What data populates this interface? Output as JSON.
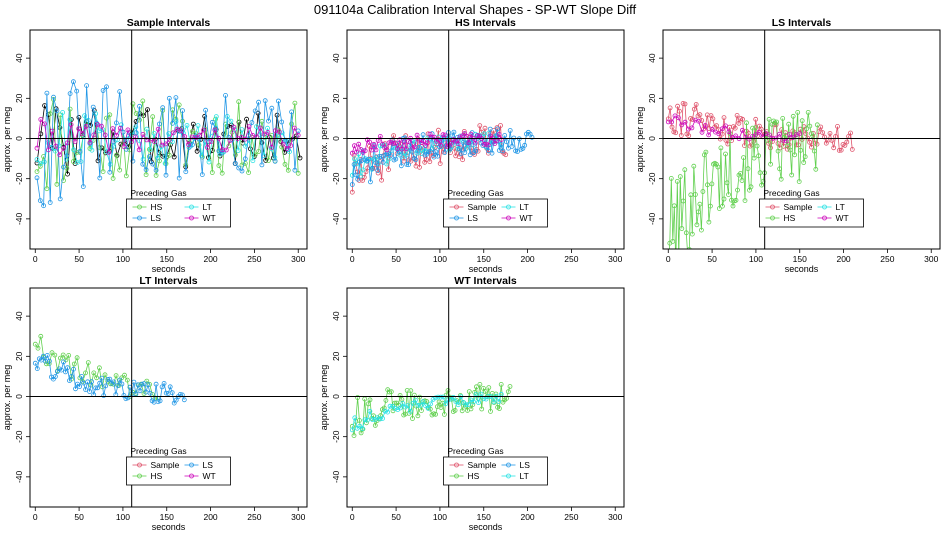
{
  "figure_title": "091104a   Calibration Interval Shapes - SP-WT Slope Diff",
  "colors": {
    "Sample": "#df536b",
    "HS": "#61d04f",
    "LS": "#2297e6",
    "LT": "#28e2e5",
    "WT": "#cd0bbc",
    "black": "#000000"
  },
  "chart_data": [
    {
      "type": "line",
      "title": "Sample Intervals",
      "xlabel": "seconds",
      "ylabel": "approx. per meg",
      "xlim": [
        -6,
        310
      ],
      "ylim": [
        -55,
        54
      ],
      "xticks": [
        0,
        50,
        100,
        150,
        200,
        250,
        300
      ],
      "yticks": [
        -40,
        -20,
        0,
        20,
        40
      ],
      "vline": 110,
      "hline": 0,
      "legend": {
        "title": "Preceding Gas",
        "entries": [
          "HS",
          "LT",
          "LS",
          "WT"
        ],
        "position": "bottom-center"
      },
      "series": [
        {
          "name": "black",
          "x_start": 2,
          "x_end": 302,
          "n": 70,
          "amp": 22,
          "noise": 0.45,
          "lead": 0,
          "seed": 3
        },
        {
          "name": "HS",
          "x_start": 2,
          "x_end": 300,
          "n": 80,
          "amp": 28,
          "noise": 0.5,
          "lead": 0,
          "seed": 11
        },
        {
          "name": "LT",
          "x_start": 2,
          "x_end": 290,
          "n": 70,
          "amp": 18,
          "noise": 0.5,
          "lead": 0,
          "seed": 21
        },
        {
          "name": "LS",
          "x_start": 2,
          "x_end": 300,
          "n": 80,
          "amp": 32,
          "noise": 0.55,
          "lead": 0,
          "seed": 31
        },
        {
          "name": "WT",
          "x_start": 2,
          "x_end": 300,
          "n": 70,
          "amp": 10,
          "noise": 0.4,
          "lead": 0,
          "seed": 41
        }
      ]
    },
    {
      "type": "line",
      "title": "HS Intervals",
      "xlabel": "seconds",
      "ylabel": "approx. per meg",
      "xlim": [
        -6,
        310
      ],
      "ylim": [
        -55,
        54
      ],
      "xticks": [
        0,
        50,
        100,
        150,
        200,
        250,
        300
      ],
      "yticks": [
        -40,
        -20,
        0,
        20,
        40
      ],
      "vline": 110,
      "hline": 0,
      "legend": {
        "title": "Preceding Gas",
        "entries": [
          "Sample",
          "LT",
          "LS",
          "WT"
        ],
        "position": "bottom-center"
      },
      "series": [
        {
          "name": "Sample",
          "x_start": 0,
          "x_end": 175,
          "n": 90,
          "amp": 12,
          "noise": 0.5,
          "lead": -20,
          "seed": 51
        },
        {
          "name": "LT",
          "x_start": 0,
          "x_end": 170,
          "n": 70,
          "amp": 6,
          "noise": 0.5,
          "lead": -15,
          "seed": 61
        },
        {
          "name": "LS",
          "x_start": 0,
          "x_end": 205,
          "n": 100,
          "amp": 9,
          "noise": 0.5,
          "lead": -18,
          "seed": 71
        },
        {
          "name": "WT",
          "x_start": 0,
          "x_end": 170,
          "n": 70,
          "amp": 5,
          "noise": 0.4,
          "lead": -5,
          "seed": 81
        }
      ]
    },
    {
      "type": "line",
      "title": "LS Intervals",
      "xlabel": "seconds",
      "ylabel": "approx. per meg",
      "xlim": [
        -6,
        310
      ],
      "ylim": [
        -55,
        54
      ],
      "xticks": [
        0,
        50,
        100,
        150,
        200,
        250,
        300
      ],
      "yticks": [
        -40,
        -20,
        0,
        20,
        40
      ],
      "vline": 110,
      "hline": 0,
      "legend": {
        "title": "Preceding Gas",
        "entries": [
          "Sample",
          "LT",
          "HS",
          "WT"
        ],
        "position": "bottom-center"
      },
      "series": [
        {
          "name": "Sample",
          "x_start": 0,
          "x_end": 210,
          "n": 100,
          "amp": 10,
          "noise": 0.5,
          "lead": 15,
          "seed": 91
        },
        {
          "name": "HS",
          "x_start": 0,
          "x_end": 170,
          "n": 100,
          "amp": 24,
          "noise": 0.55,
          "lead": -50,
          "seed": 101
        },
        {
          "name": "WT",
          "x_start": 0,
          "x_end": 150,
          "n": 40,
          "amp": 4,
          "noise": 0.4,
          "lead": 10,
          "seed": 111
        }
      ]
    },
    {
      "type": "line",
      "title": "LT Intervals",
      "xlabel": "seconds",
      "ylabel": "approx. per meg",
      "xlim": [
        -6,
        310
      ],
      "ylim": [
        -55,
        54
      ],
      "xticks": [
        0,
        50,
        100,
        150,
        200,
        250,
        300
      ],
      "yticks": [
        -40,
        -20,
        0,
        20,
        40
      ],
      "vline": 110,
      "hline": 0,
      "legend": {
        "title": "Preceding Gas",
        "entries": [
          "Sample",
          "LS",
          "HS",
          "WT"
        ],
        "position": "bottom-center"
      },
      "series": [
        {
          "name": "HS",
          "x_start": 0,
          "x_end": 140,
          "n": 45,
          "amp": 8,
          "noise": 0.5,
          "lead": 30,
          "seed": 121
        },
        {
          "name": "LS",
          "x_start": 0,
          "x_end": 170,
          "n": 75,
          "amp": 7,
          "noise": 0.5,
          "lead": 20,
          "seed": 131
        }
      ]
    },
    {
      "type": "line",
      "title": "WT Intervals",
      "xlabel": "seconds",
      "ylabel": "approx. per meg",
      "xlim": [
        -6,
        310
      ],
      "ylim": [
        -55,
        54
      ],
      "xticks": [
        0,
        50,
        100,
        150,
        200,
        250,
        300
      ],
      "yticks": [
        -40,
        -20,
        0,
        20,
        40
      ],
      "vline": 110,
      "hline": 0,
      "legend": {
        "title": "Preceding Gas",
        "entries": [
          "Sample",
          "LS",
          "HS",
          "LT"
        ],
        "position": "bottom-center"
      },
      "series": [
        {
          "name": "HS",
          "x_start": 0,
          "x_end": 180,
          "n": 90,
          "amp": 10,
          "noise": 0.5,
          "lead": -10,
          "seed": 141
        },
        {
          "name": "LT",
          "x_start": 0,
          "x_end": 170,
          "n": 60,
          "amp": 4,
          "noise": 0.4,
          "lead": -15,
          "seed": 151
        }
      ]
    }
  ]
}
